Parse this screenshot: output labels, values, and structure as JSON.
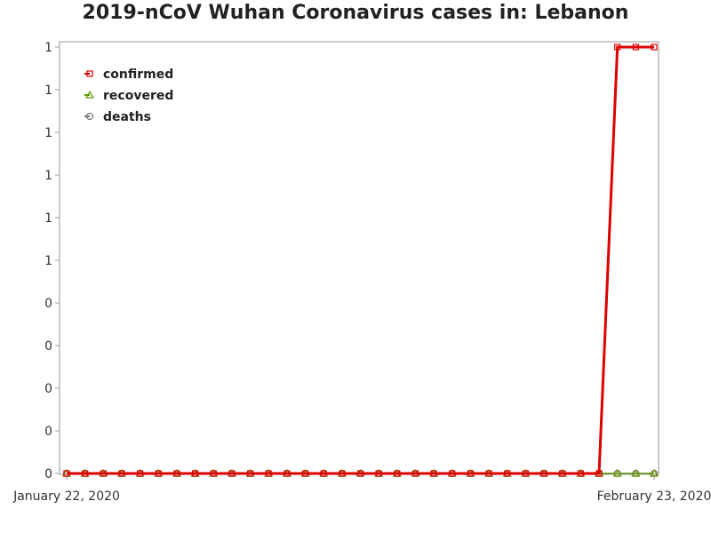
{
  "chart_data": {
    "type": "line",
    "title": "2019-nCoV Wuhan Coronavirus cases in: Lebanon",
    "xlabel": "",
    "ylabel": "",
    "x": [
      "2020-01-22",
      "2020-01-23",
      "2020-01-24",
      "2020-01-25",
      "2020-01-26",
      "2020-01-27",
      "2020-01-28",
      "2020-01-29",
      "2020-01-30",
      "2020-01-31",
      "2020-02-01",
      "2020-02-02",
      "2020-02-03",
      "2020-02-04",
      "2020-02-05",
      "2020-02-06",
      "2020-02-07",
      "2020-02-08",
      "2020-02-09",
      "2020-02-10",
      "2020-02-11",
      "2020-02-12",
      "2020-02-13",
      "2020-02-14",
      "2020-02-15",
      "2020-02-16",
      "2020-02-17",
      "2020-02-18",
      "2020-02-19",
      "2020-02-20",
      "2020-02-21",
      "2020-02-22",
      "2020-02-23"
    ],
    "x_tick_labels": [
      "January 22, 2020",
      "February 23, 2020"
    ],
    "y_tick_labels": [
      "0",
      "0",
      "0",
      "0",
      "0",
      "1",
      "1",
      "1",
      "1",
      "1",
      "1"
    ],
    "ylim": [
      0,
      1
    ],
    "grid": false,
    "legend_position": "top-left",
    "series": [
      {
        "name": "confirmed",
        "color": "#dd0000",
        "marker": "square",
        "values": [
          0,
          0,
          0,
          0,
          0,
          0,
          0,
          0,
          0,
          0,
          0,
          0,
          0,
          0,
          0,
          0,
          0,
          0,
          0,
          0,
          0,
          0,
          0,
          0,
          0,
          0,
          0,
          0,
          0,
          0,
          1,
          1,
          1
        ]
      },
      {
        "name": "recovered",
        "color": "#669900",
        "marker": "triangle",
        "values": [
          0,
          0,
          0,
          0,
          0,
          0,
          0,
          0,
          0,
          0,
          0,
          0,
          0,
          0,
          0,
          0,
          0,
          0,
          0,
          0,
          0,
          0,
          0,
          0,
          0,
          0,
          0,
          0,
          0,
          0,
          0,
          0,
          0
        ]
      },
      {
        "name": "deaths",
        "color": "#777777",
        "marker": "circle",
        "values": [
          0,
          0,
          0,
          0,
          0,
          0,
          0,
          0,
          0,
          0,
          0,
          0,
          0,
          0,
          0,
          0,
          0,
          0,
          0,
          0,
          0,
          0,
          0,
          0,
          0,
          0,
          0,
          0,
          0,
          0,
          0,
          0,
          0
        ]
      }
    ]
  }
}
